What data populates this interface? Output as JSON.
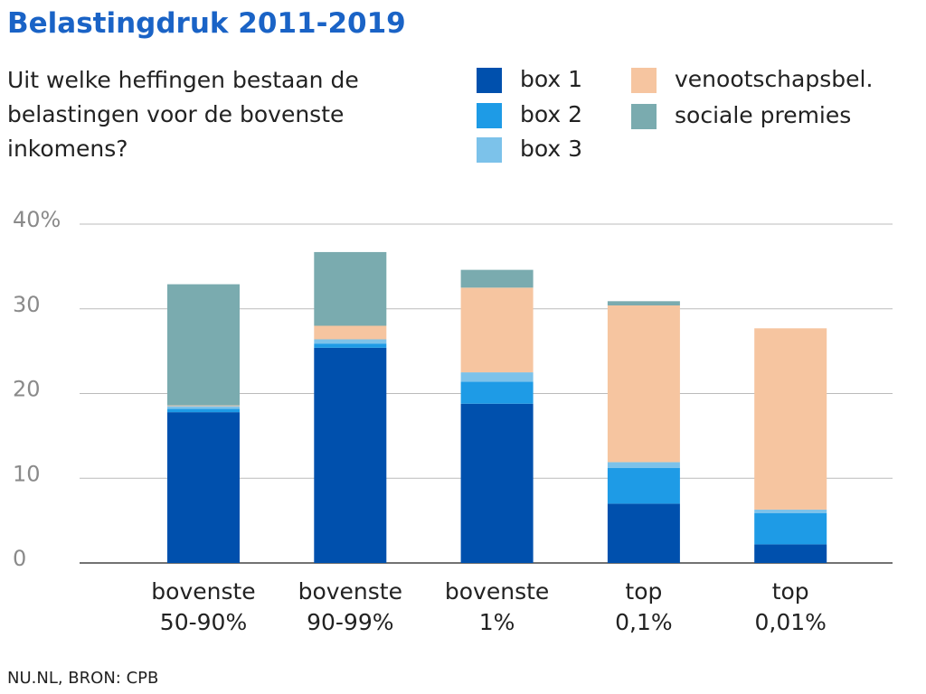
{
  "chart_data": {
    "type": "stacked_bar",
    "title": "Belastingdruk 2011-2019",
    "subtitle": "Uit welke heffingen bestaan de belastingen voor de bovenste inkomens?",
    "source": "NU.NL, BRON: CPB",
    "categories": [
      "bovenste\n50-90%",
      "bovenste\n90-99%",
      "bovenste\n1%",
      "top\n0,1%",
      "top\n0,01%"
    ],
    "series": [
      {
        "name": "box 1",
        "color": "#0050ad",
        "values": [
          17.8,
          25.4,
          18.8,
          7.0,
          2.2
        ]
      },
      {
        "name": "box 2",
        "color": "#1e9be6",
        "values": [
          0.4,
          0.5,
          2.6,
          4.2,
          3.7
        ]
      },
      {
        "name": "box 3",
        "color": "#7cc2ea",
        "values": [
          0.3,
          0.5,
          1.1,
          0.7,
          0.4
        ]
      },
      {
        "name": "venootschapsbel.",
        "color": "#f6c5a0",
        "values": [
          0.1,
          1.6,
          10.0,
          18.5,
          21.4
        ]
      },
      {
        "name": "sociale premies",
        "color": "#7aabaf",
        "values": [
          14.3,
          8.7,
          2.1,
          0.5,
          0
        ]
      }
    ],
    "ylim": [
      0,
      40
    ],
    "yticks": [
      0,
      10,
      20,
      30,
      {
        "value": 40,
        "label": "40%"
      }
    ],
    "grid": true
  }
}
